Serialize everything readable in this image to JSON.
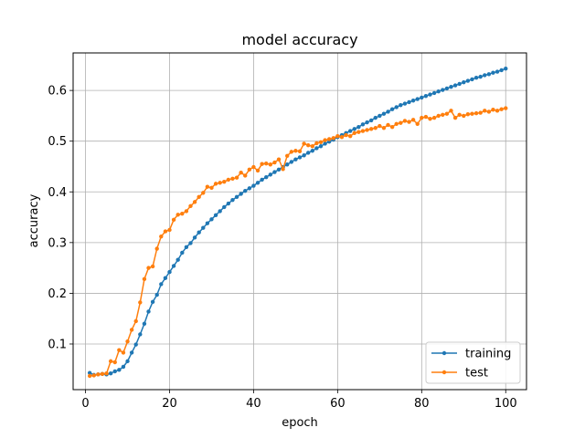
{
  "chart_data": {
    "type": "line",
    "title": "model accuracy",
    "xlabel": "epoch",
    "ylabel": "accuracy",
    "xlim": [
      -2.95,
      104.95
    ],
    "ylim": [
      0.01,
      0.674
    ],
    "xticks": [
      0,
      20,
      40,
      60,
      80,
      100
    ],
    "yticks": [
      0.1,
      0.2,
      0.3,
      0.4,
      0.5,
      0.6
    ],
    "grid": true,
    "legend_position": "lower right",
    "x": [
      1,
      2,
      3,
      4,
      5,
      6,
      7,
      8,
      9,
      10,
      11,
      12,
      13,
      14,
      15,
      16,
      17,
      18,
      19,
      20,
      21,
      22,
      23,
      24,
      25,
      26,
      27,
      28,
      29,
      30,
      31,
      32,
      33,
      34,
      35,
      36,
      37,
      38,
      39,
      40,
      41,
      42,
      43,
      44,
      45,
      46,
      47,
      48,
      49,
      50,
      51,
      52,
      53,
      54,
      55,
      56,
      57,
      58,
      59,
      60,
      61,
      62,
      63,
      64,
      65,
      66,
      67,
      68,
      69,
      70,
      71,
      72,
      73,
      74,
      75,
      76,
      77,
      78,
      79,
      80,
      81,
      82,
      83,
      84,
      85,
      86,
      87,
      88,
      89,
      90,
      91,
      92,
      93,
      94,
      95,
      96,
      97,
      98,
      99,
      100
    ],
    "series": [
      {
        "name": "training",
        "color": "#1f77b4",
        "values": [
          0.043,
          0.039,
          0.04,
          0.041,
          0.04,
          0.042,
          0.046,
          0.049,
          0.055,
          0.066,
          0.083,
          0.099,
          0.119,
          0.14,
          0.164,
          0.183,
          0.197,
          0.218,
          0.23,
          0.242,
          0.254,
          0.266,
          0.28,
          0.291,
          0.299,
          0.31,
          0.32,
          0.329,
          0.338,
          0.346,
          0.354,
          0.362,
          0.37,
          0.377,
          0.384,
          0.39,
          0.396,
          0.402,
          0.407,
          0.412,
          0.418,
          0.424,
          0.429,
          0.434,
          0.439,
          0.444,
          0.449,
          0.454,
          0.459,
          0.464,
          0.468,
          0.472,
          0.477,
          0.481,
          0.486,
          0.49,
          0.495,
          0.499,
          0.503,
          0.508,
          0.512,
          0.516,
          0.52,
          0.524,
          0.528,
          0.533,
          0.537,
          0.541,
          0.546,
          0.55,
          0.554,
          0.558,
          0.563,
          0.567,
          0.571,
          0.574,
          0.577,
          0.58,
          0.583,
          0.586,
          0.589,
          0.592,
          0.595,
          0.598,
          0.601,
          0.604,
          0.607,
          0.61,
          0.613,
          0.616,
          0.619,
          0.622,
          0.625,
          0.627,
          0.63,
          0.632,
          0.635,
          0.637,
          0.64,
          0.643
        ]
      },
      {
        "name": "test",
        "color": "#ff7f0e",
        "values": [
          0.037,
          0.038,
          0.04,
          0.041,
          0.042,
          0.066,
          0.064,
          0.088,
          0.083,
          0.105,
          0.128,
          0.145,
          0.182,
          0.228,
          0.25,
          0.253,
          0.288,
          0.312,
          0.322,
          0.325,
          0.345,
          0.355,
          0.357,
          0.362,
          0.372,
          0.38,
          0.39,
          0.398,
          0.41,
          0.408,
          0.416,
          0.418,
          0.42,
          0.424,
          0.426,
          0.428,
          0.438,
          0.432,
          0.444,
          0.449,
          0.442,
          0.455,
          0.456,
          0.454,
          0.458,
          0.464,
          0.445,
          0.471,
          0.479,
          0.481,
          0.48,
          0.495,
          0.492,
          0.49,
          0.496,
          0.498,
          0.502,
          0.504,
          0.506,
          0.51,
          0.508,
          0.512,
          0.51,
          0.516,
          0.518,
          0.52,
          0.522,
          0.524,
          0.526,
          0.53,
          0.526,
          0.532,
          0.528,
          0.534,
          0.536,
          0.54,
          0.538,
          0.542,
          0.534,
          0.546,
          0.548,
          0.544,
          0.546,
          0.55,
          0.552,
          0.554,
          0.56,
          0.546,
          0.552,
          0.55,
          0.553,
          0.554,
          0.555,
          0.556,
          0.56,
          0.558,
          0.562,
          0.56,
          0.563,
          0.565
        ]
      }
    ]
  }
}
